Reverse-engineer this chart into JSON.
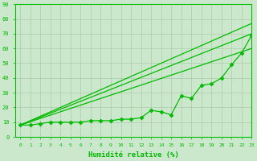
{
  "title": "",
  "xlabel": "Humidité relative (%)",
  "ylabel": "",
  "bg_color": "#cce8cc",
  "grid_color": "#aaccaa",
  "line_color": "#00bb00",
  "marker_color": "#00bb00",
  "xlim": [
    -0.5,
    23
  ],
  "ylim": [
    0,
    90
  ],
  "xticks": [
    0,
    1,
    2,
    3,
    4,
    5,
    6,
    7,
    8,
    9,
    10,
    11,
    12,
    13,
    14,
    15,
    16,
    17,
    18,
    19,
    20,
    21,
    22,
    23
  ],
  "yticks": [
    0,
    10,
    20,
    30,
    40,
    50,
    60,
    70,
    80,
    90
  ],
  "line_straight1": [
    [
      0,
      23
    ],
    [
      8,
      77
    ]
  ],
  "line_straight2": [
    [
      0,
      23
    ],
    [
      8,
      70
    ]
  ],
  "line_straight3": [
    [
      0,
      23
    ],
    [
      8,
      60
    ]
  ],
  "line_bumpy": [
    8,
    8,
    9,
    10,
    10,
    10,
    10,
    11,
    11,
    11,
    12,
    12,
    13,
    18,
    17,
    15,
    28,
    26,
    35,
    36,
    40,
    49,
    57,
    69
  ],
  "figsize": [
    3.2,
    2.0
  ],
  "dpi": 100
}
